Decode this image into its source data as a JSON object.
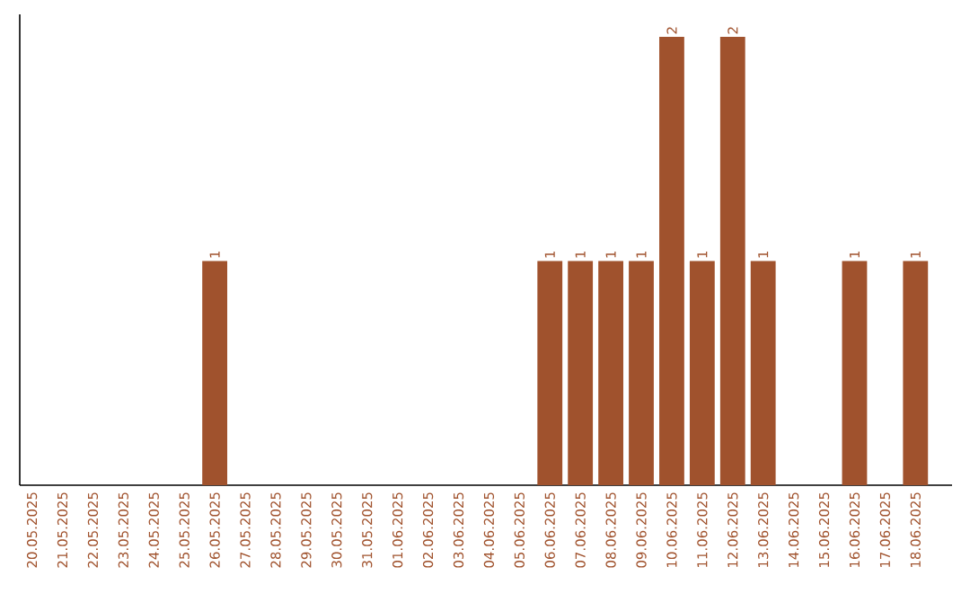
{
  "chart_data": {
    "type": "bar",
    "categories": [
      "20.05.2025",
      "21.05.2025",
      "22.05.2025",
      "23.05.2025",
      "24.05.2025",
      "25.05.2025",
      "26.05.2025",
      "27.05.2025",
      "28.05.2025",
      "29.05.2025",
      "30.05.2025",
      "31.05.2025",
      "01.06.2025",
      "02.06.2025",
      "03.06.2025",
      "04.06.2025",
      "05.06.2025",
      "06.06.2025",
      "07.06.2025",
      "08.06.2025",
      "09.06.2025",
      "10.06.2025",
      "11.06.2025",
      "12.06.2025",
      "13.06.2025",
      "14.06.2025",
      "15.06.2025",
      "16.06.2025",
      "17.06.2025",
      "18.06.2025"
    ],
    "values": [
      0,
      0,
      0,
      0,
      0,
      0,
      1,
      0,
      0,
      0,
      0,
      0,
      0,
      0,
      0,
      0,
      0,
      1,
      1,
      1,
      1,
      2,
      1,
      2,
      1,
      0,
      0,
      1,
      0,
      1
    ],
    "value_labels": [
      null,
      null,
      null,
      null,
      null,
      null,
      "1",
      null,
      null,
      null,
      null,
      null,
      null,
      null,
      null,
      null,
      null,
      "1",
      "1",
      "1",
      "1",
      "2",
      "1",
      "2",
      "1",
      null,
      null,
      "1",
      null,
      "1"
    ],
    "color": "#a0522d",
    "tick_labels": "x"
  }
}
